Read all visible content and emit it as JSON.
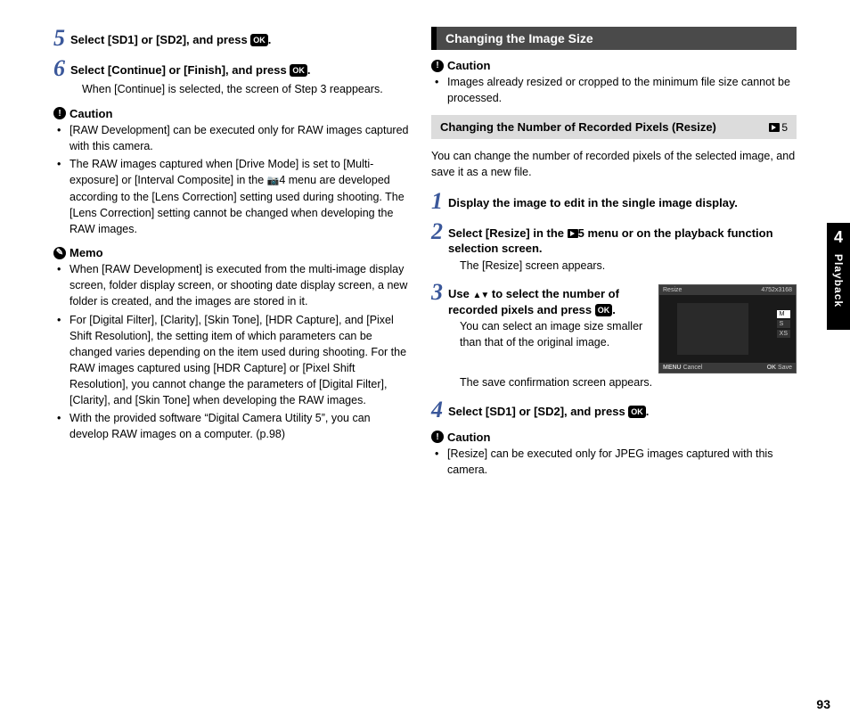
{
  "left": {
    "step5": "Select [SD1] or [SD2], and press",
    "step5_chip": "OK",
    "step5_end": ".",
    "step6": "Select [Continue] or [Finish], and press",
    "step6_chip": "OK",
    "step6_end": ".",
    "step6_sub": "When [Continue] is selected, the screen of Step 3 reappears.",
    "caution_label": "Caution",
    "caution_items": {
      "a": "[RAW Development] can be executed only for RAW images captured with this camera.",
      "b1": "The RAW images captured when [Drive Mode] is set to [Multi-exposure] or [Interval Composite] in the ",
      "b2": "4 menu are developed according to the [Lens Correction] setting used during shooting. The [Lens Correction] setting cannot be changed when developing the RAW images."
    },
    "memo_label": "Memo",
    "memo_items": {
      "a": "When [RAW Development] is executed from the multi-image display screen, folder display screen, or shooting date display screen, a new folder is created, and the images are stored in it.",
      "b": "For [Digital Filter], [Clarity], [Skin Tone], [HDR Capture], and [Pixel Shift Resolution], the setting item of which parameters can be changed varies depending on the item used during shooting. For the RAW images captured using [HDR Capture] or [Pixel Shift Resolution], you cannot change the parameters of [Digital Filter], [Clarity], and [Skin Tone] when developing the RAW images.",
      "c": "With the provided software “Digital Camera Utility 5”, you can develop RAW images on a computer. (p.98)"
    }
  },
  "right": {
    "section_title": "Changing the Image Size",
    "caution_label": "Caution",
    "caution_item": "Images already resized or cropped to the minimum file size cannot be processed.",
    "subbar_title": "Changing the Number of Recorded Pixels (Resize)",
    "subbar_tag": "5",
    "intro": "You can change the number of recorded pixels of the selected image, and save it as a new file.",
    "step1": "Display the image to edit in the single image display.",
    "step2a": "Select [Resize] in the ",
    "step2b": "5 menu or on the playback function selection screen.",
    "step2_sub": "The [Resize] screen appears.",
    "step3a": "Use ",
    "step3b": " to select the number of recorded pixels and press ",
    "step3_chip": "OK",
    "step3c": ".",
    "step3_sub1": "You can select an image size smaller than that of the original image.",
    "step3_sub2": "The save confirmation screen appears.",
    "step4": "Select [SD1] or [SD2], and press ",
    "step4_chip": "OK",
    "step4_end": ".",
    "caution2_label": "Caution",
    "caution2_item": "[Resize] can be executed only for JPEG images captured with this camera.",
    "lcd": {
      "title": "Resize",
      "res": "4752x3168",
      "opt_m": "M",
      "opt_s": "S",
      "opt_xs": "XS",
      "cancel": "Cancel",
      "save": "Save",
      "menu_label": "MENU",
      "ok_label": "OK"
    }
  },
  "side": {
    "chapter": "4",
    "label": "Playback"
  },
  "page_number": "93"
}
